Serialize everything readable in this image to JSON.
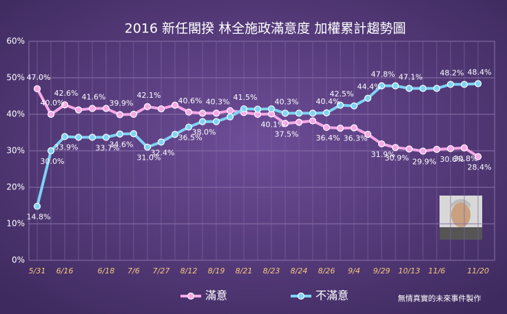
{
  "chart_data": {
    "type": "line",
    "title": "2016 新任閣揆  林全施政滿意度 加權累計趨勢圖",
    "credit": "無情真實的未來事件製作",
    "categories": [
      "5/31",
      null,
      "6/16",
      null,
      null,
      "6/18",
      null,
      "7/6",
      null,
      "7/27",
      null,
      "8/12",
      null,
      "8/19",
      null,
      "8/21",
      null,
      "8/23",
      null,
      "8/24",
      null,
      "8/26",
      null,
      "9/4",
      null,
      "9/29",
      null,
      "10/13",
      null,
      "11/6",
      null,
      null,
      "11/20"
    ],
    "series": [
      {
        "name": "滿意",
        "color": "#f7a8e8",
        "values": [
          47.0,
          40.0,
          42.6,
          41.2,
          41.6,
          41.6,
          39.9,
          40.0,
          42.1,
          41.5,
          42.5,
          40.6,
          40.3,
          40.3,
          41.0,
          40.5,
          40.0,
          40.1,
          37.5,
          37.8,
          38.2,
          36.4,
          36.2,
          36.3,
          34.5,
          31.9,
          30.9,
          30.5,
          29.9,
          30.4,
          30.6,
          30.8,
          28.4
        ],
        "value_labels": [
          "47.0%",
          "40.0%",
          "42.6%",
          null,
          "41.6%",
          null,
          "39.9%",
          null,
          "42.1%",
          null,
          null,
          "40.6%",
          null,
          "40.3%",
          null,
          null,
          null,
          "40.1%",
          "37.5%",
          null,
          null,
          "36.4%",
          null,
          "36.3%",
          null,
          "31.9%",
          "30.9%",
          null,
          "29.9%",
          null,
          "30.6%",
          "30.8%",
          "28.4%"
        ]
      },
      {
        "name": "不滿意",
        "color": "#7fd3f7",
        "values": [
          14.8,
          30.0,
          33.9,
          33.7,
          33.7,
          33.7,
          34.6,
          34.7,
          31.0,
          32.4,
          34.5,
          36.5,
          38.0,
          38.0,
          39.3,
          41.5,
          41.4,
          41.5,
          40.3,
          40.3,
          40.3,
          40.4,
          42.5,
          42.3,
          44.4,
          47.8,
          47.8,
          47.1,
          47.1,
          47.1,
          48.2,
          48.2,
          48.4
        ],
        "value_labels": [
          "14.8%",
          "30.0%",
          "33.9%",
          null,
          null,
          "33.7%",
          "34.6%",
          null,
          "31.0%",
          "32.4%",
          null,
          "36.5%",
          "38.0%",
          null,
          null,
          "41.5%",
          null,
          null,
          "40.3%",
          null,
          null,
          "40.4%",
          "42.5%",
          null,
          "44.4%",
          "47.8%",
          null,
          "47.1%",
          null,
          null,
          "48.2%",
          null,
          "48.4%"
        ]
      }
    ],
    "ylim": [
      0,
      60
    ],
    "yticks": [
      {
        "value": 0,
        "label": "0%"
      },
      {
        "value": 10,
        "label": "10%"
      },
      {
        "value": 20,
        "label": "20%"
      },
      {
        "value": 30,
        "label": "30%"
      },
      {
        "value": 40,
        "label": "40%"
      },
      {
        "value": 50,
        "label": "50%"
      },
      {
        "value": 60,
        "label": "60%"
      }
    ],
    "grid": true
  }
}
